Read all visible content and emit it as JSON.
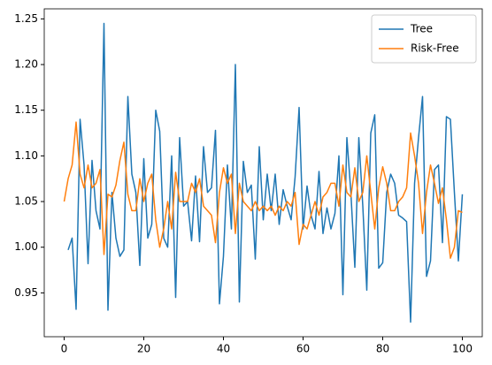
{
  "chart_data": {
    "type": "line",
    "x": [
      0,
      1,
      2,
      3,
      4,
      5,
      6,
      7,
      8,
      9,
      10,
      11,
      12,
      13,
      14,
      15,
      16,
      17,
      18,
      19,
      20,
      21,
      22,
      23,
      24,
      25,
      26,
      27,
      28,
      29,
      30,
      31,
      32,
      33,
      34,
      35,
      36,
      37,
      38,
      39,
      40,
      41,
      42,
      43,
      44,
      45,
      46,
      47,
      48,
      49,
      50,
      51,
      52,
      53,
      54,
      55,
      56,
      57,
      58,
      59,
      60,
      61,
      62,
      63,
      64,
      65,
      66,
      67,
      68,
      69,
      70,
      71,
      72,
      73,
      74,
      75,
      76,
      77,
      78,
      79,
      80,
      81,
      82,
      83,
      84,
      85,
      86,
      87,
      88,
      89,
      90,
      91,
      92,
      93,
      94,
      95,
      96,
      97,
      98,
      99,
      100
    ],
    "series": [
      {
        "name": "Tree",
        "color": "#1f77b4",
        "values": [
          null,
          0.997,
          1.01,
          0.932,
          1.14,
          1.09,
          0.982,
          1.095,
          1.04,
          1.02,
          1.245,
          0.931,
          1.06,
          1.01,
          0.99,
          0.997,
          1.165,
          1.08,
          1.06,
          0.98,
          1.097,
          1.01,
          1.025,
          1.15,
          1.127,
          1.01,
          1.0,
          1.1,
          0.945,
          1.12,
          1.045,
          1.05,
          1.007,
          1.078,
          1.006,
          1.11,
          1.06,
          1.065,
          1.128,
          0.938,
          0.99,
          1.09,
          1.02,
          1.2,
          0.94,
          1.094,
          1.06,
          1.068,
          0.987,
          1.11,
          1.03,
          1.08,
          1.04,
          1.08,
          1.025,
          1.063,
          1.045,
          1.03,
          1.077,
          1.153,
          1.02,
          1.067,
          1.035,
          1.02,
          1.083,
          1.015,
          1.043,
          1.02,
          1.037,
          1.1,
          0.948,
          1.12,
          1.06,
          0.978,
          1.12,
          1.045,
          0.953,
          1.125,
          1.145,
          0.977,
          0.983,
          1.06,
          1.08,
          1.07,
          1.035,
          1.032,
          1.028,
          0.918,
          1.07,
          1.12,
          1.165,
          0.968,
          0.985,
          1.085,
          1.09,
          1.005,
          1.143,
          1.14,
          1.06,
          0.985,
          1.058
        ]
      },
      {
        "name": "Risk-Free",
        "color": "#ff7f0e",
        "values": [
          1.05,
          1.075,
          1.09,
          1.137,
          1.08,
          1.065,
          1.09,
          1.065,
          1.07,
          1.085,
          0.992,
          1.058,
          1.055,
          1.068,
          1.095,
          1.115,
          1.058,
          1.04,
          1.04,
          1.075,
          1.05,
          1.07,
          1.08,
          1.03,
          1.0,
          1.02,
          1.05,
          1.02,
          1.082,
          1.05,
          1.05,
          1.05,
          1.07,
          1.06,
          1.075,
          1.045,
          1.04,
          1.035,
          1.005,
          1.06,
          1.087,
          1.07,
          1.08,
          1.015,
          1.07,
          1.05,
          1.045,
          1.04,
          1.05,
          1.04,
          1.045,
          1.04,
          1.045,
          1.035,
          1.045,
          1.04,
          1.05,
          1.045,
          1.06,
          1.003,
          1.025,
          1.02,
          1.035,
          1.05,
          1.035,
          1.055,
          1.06,
          1.07,
          1.07,
          1.045,
          1.09,
          1.06,
          1.055,
          1.087,
          1.05,
          1.06,
          1.1,
          1.06,
          1.02,
          1.065,
          1.088,
          1.07,
          1.04,
          1.04,
          1.05,
          1.055,
          1.065,
          1.125,
          1.1,
          1.07,
          1.015,
          1.06,
          1.09,
          1.07,
          1.048,
          1.065,
          1.03,
          0.988,
          1.0,
          1.04,
          1.038
        ]
      }
    ],
    "xlim": [
      -5,
      105
    ],
    "xticks": [
      0,
      20,
      40,
      60,
      80,
      100
    ],
    "ylim": [
      0.902,
      1.261
    ],
    "yticks": [
      0.95,
      {
        "value": 1,
        "label": "1.00"
      },
      1.05,
      {
        "value": 1.1,
        "label": "1.10"
      },
      1.15,
      {
        "value": 1.2,
        "label": "1.20"
      },
      1.25
    ],
    "grid": false,
    "legend": "upper right"
  }
}
